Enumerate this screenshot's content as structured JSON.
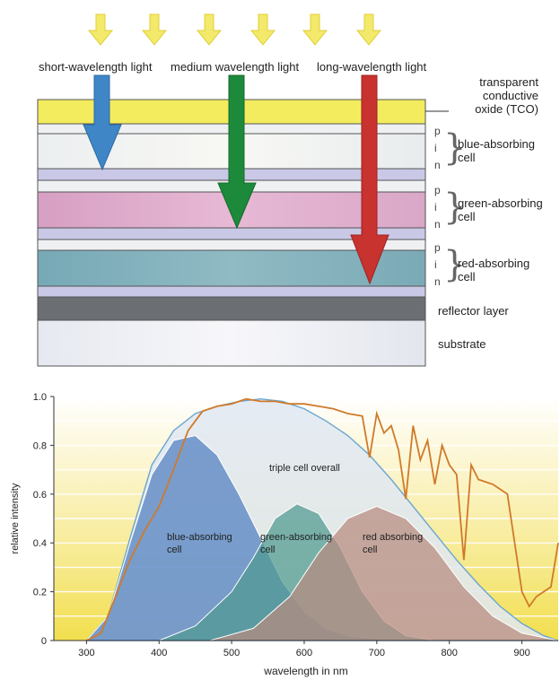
{
  "diagram": {
    "light_labels": [
      "short-wavelength light",
      "medium wavelength light",
      "long-wavelength light"
    ],
    "layers": {
      "tco_line1": "transparent",
      "tco_line2": "conductive",
      "tco_line3": "oxide (TCO)",
      "blue_cell_line1": "blue-absorbing",
      "blue_cell_line2": "cell",
      "green_cell_line1": "green-absorbing",
      "green_cell_line2": "cell",
      "red_cell_line1": "red-absorbing",
      "red_cell_line2": "cell",
      "reflector": "reflector layer",
      "substrate": "substrate"
    },
    "pin_letters": [
      "p",
      "i",
      "n"
    ],
    "colors": {
      "blue_arrow": "#3f86c7",
      "green_arrow": "#1c8a3a",
      "red_arrow": "#c8322f",
      "tco": "#f2ec5e"
    }
  },
  "chart_data": {
    "type": "area",
    "title": "",
    "xlabel": "wavelength in nm",
    "ylabel": "relative intensity",
    "xlim": [
      255,
      950
    ],
    "ylim": [
      0,
      1.0
    ],
    "xticks": [
      300,
      400,
      500,
      600,
      700,
      800,
      900
    ],
    "yticks": [
      "0",
      "0.2",
      "0.4",
      "0.6",
      "0.8",
      "1.0"
    ],
    "annotations": {
      "overall": "triple cell overall",
      "blue_line1": "blue-absorbing",
      "blue_line2": "cell",
      "green_line1": "green-absorbing",
      "green_line2": "cell",
      "red_line1": "red absorbing",
      "red_line2": "cell"
    },
    "series": [
      {
        "color": "#4f7ec0",
        "x": [
          300,
          330,
          360,
          390,
          420,
          450,
          480,
          510,
          540,
          570,
          600,
          630,
          660,
          690,
          720
        ],
        "values": [
          0,
          0.1,
          0.4,
          0.68,
          0.82,
          0.84,
          0.76,
          0.6,
          0.42,
          0.24,
          0.12,
          0.05,
          0.02,
          0.01,
          0
        ]
      },
      {
        "color": "#4f9a90",
        "x": [
          400,
          450,
          500,
          530,
          560,
          590,
          620,
          650,
          680,
          710,
          740,
          780
        ],
        "values": [
          0,
          0.06,
          0.2,
          0.34,
          0.5,
          0.56,
          0.52,
          0.38,
          0.2,
          0.08,
          0.02,
          0
        ]
      },
      {
        "color": "#b98a80",
        "x": [
          470,
          530,
          580,
          620,
          660,
          700,
          740,
          780,
          820,
          860,
          900,
          950
        ],
        "values": [
          0,
          0.05,
          0.18,
          0.36,
          0.5,
          0.55,
          0.5,
          0.38,
          0.22,
          0.1,
          0.03,
          0
        ]
      },
      {
        "color": "#dfe8f2",
        "x": [
          300,
          330,
          360,
          390,
          420,
          450,
          480,
          510,
          540,
          570,
          600,
          630,
          660,
          690,
          720,
          750,
          780,
          810,
          840,
          870,
          900,
          930,
          950
        ],
        "values": [
          0,
          0.1,
          0.42,
          0.72,
          0.86,
          0.93,
          0.96,
          0.98,
          0.99,
          0.98,
          0.95,
          0.9,
          0.84,
          0.76,
          0.66,
          0.55,
          0.44,
          0.33,
          0.23,
          0.14,
          0.07,
          0.02,
          0
        ]
      },
      {
        "color": "#cf7a2a",
        "x": [
          300,
          320,
          340,
          360,
          380,
          400,
          420,
          440,
          460,
          480,
          500,
          520,
          540,
          560,
          580,
          600,
          620,
          640,
          660,
          680,
          690,
          700,
          710,
          720,
          730,
          740,
          750,
          760,
          770,
          780,
          790,
          800,
          810,
          820,
          830,
          840,
          860,
          880,
          900,
          910,
          920,
          930,
          940,
          950
        ],
        "values": [
          0,
          0.03,
          0.18,
          0.33,
          0.45,
          0.55,
          0.7,
          0.86,
          0.94,
          0.96,
          0.97,
          0.99,
          0.98,
          0.98,
          0.97,
          0.97,
          0.96,
          0.95,
          0.93,
          0.92,
          0.75,
          0.93,
          0.85,
          0.88,
          0.78,
          0.58,
          0.88,
          0.74,
          0.82,
          0.64,
          0.8,
          0.72,
          0.68,
          0.33,
          0.72,
          0.66,
          0.64,
          0.6,
          0.2,
          0.14,
          0.18,
          0.2,
          0.22,
          0.4
        ]
      }
    ]
  }
}
